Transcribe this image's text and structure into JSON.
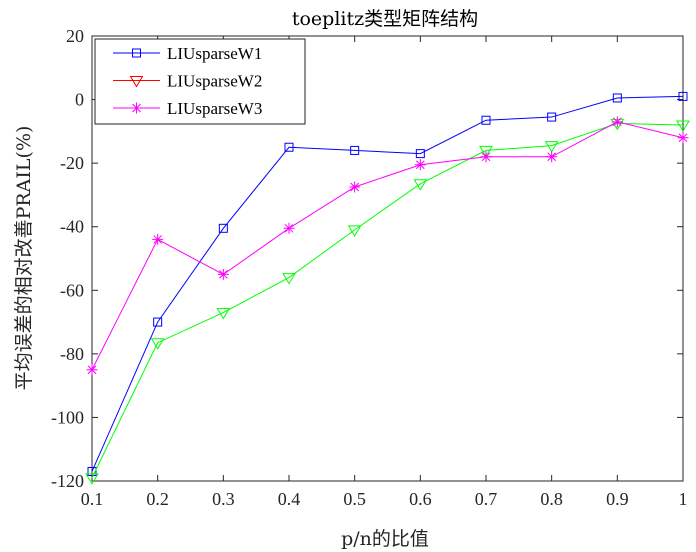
{
  "chart_data": {
    "type": "line",
    "title": "toeplitz类型矩阵结构",
    "xlabel": "p/n的比值",
    "ylabel": "平均误差的相对改善PRAIL(%)",
    "x": [
      0.1,
      0.2,
      0.3,
      0.4,
      0.5,
      0.6,
      0.7,
      0.8,
      0.9,
      1.0
    ],
    "xlim": [
      0.1,
      1.0
    ],
    "ylim": [
      -120,
      20
    ],
    "x_ticks": [
      "0.1",
      "0.2",
      "0.3",
      "0.4",
      "0.5",
      "0.6",
      "0.7",
      "0.8",
      "0.9",
      "1"
    ],
    "y_ticks": [
      "20",
      "0",
      "-20",
      "-40",
      "-60",
      "-80",
      "-100",
      "-120"
    ],
    "grid": false,
    "legend_position": "top-left",
    "series": [
      {
        "name": "LIUsparseW1",
        "color": "#0000ff",
        "marker": "square",
        "values": [
          -117,
          -70,
          -40.5,
          -15,
          -16,
          -17,
          -6.5,
          -5.5,
          0.5,
          1
        ]
      },
      {
        "name": "LIUsparseW2",
        "color": "#ff0000",
        "line_color": "#00ff00",
        "marker": "triangle-down",
        "values": [
          -119,
          -76.5,
          -67,
          -56,
          -41,
          -26.5,
          -16,
          -14.5,
          -7.5,
          -8
        ]
      },
      {
        "name": "LIUsparseW3",
        "color": "#ff00ff",
        "marker": "asterisk",
        "values": [
          -85,
          -44,
          -55,
          -40.5,
          -27.5,
          -20.5,
          -18,
          -18,
          -7,
          -12
        ]
      }
    ]
  }
}
